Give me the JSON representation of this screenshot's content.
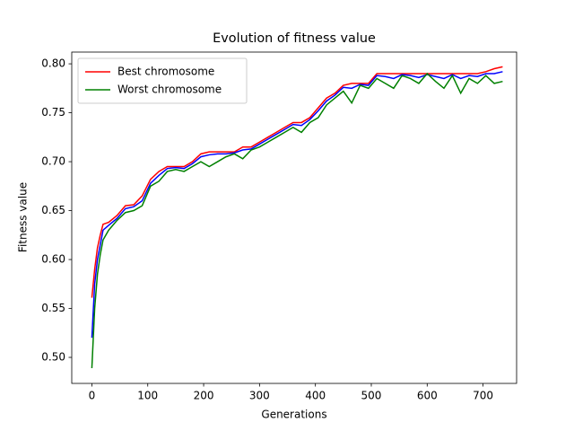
{
  "chart_data": {
    "type": "line",
    "title": "Evolution of fitness value",
    "xlabel": "Generations",
    "ylabel": "Fitness value",
    "x": [
      0,
      5,
      10,
      15,
      20,
      30,
      45,
      60,
      75,
      90,
      105,
      120,
      135,
      150,
      165,
      180,
      195,
      210,
      225,
      240,
      255,
      270,
      285,
      300,
      315,
      330,
      345,
      360,
      375,
      390,
      405,
      420,
      435,
      450,
      465,
      480,
      495,
      510,
      525,
      540,
      555,
      570,
      585,
      600,
      615,
      630,
      645,
      660,
      675,
      690,
      705,
      720,
      735
    ],
    "series": [
      {
        "name": "Best chromosome",
        "color": "#ff0000",
        "values": [
          0.561,
          0.59,
          0.612,
          0.625,
          0.636,
          0.638,
          0.645,
          0.655,
          0.656,
          0.665,
          0.682,
          0.69,
          0.695,
          0.695,
          0.695,
          0.7,
          0.708,
          0.71,
          0.71,
          0.71,
          0.71,
          0.715,
          0.715,
          0.72,
          0.725,
          0.73,
          0.735,
          0.74,
          0.74,
          0.745,
          0.755,
          0.765,
          0.77,
          0.778,
          0.78,
          0.78,
          0.78,
          0.79,
          0.79,
          0.79,
          0.79,
          0.79,
          0.79,
          0.79,
          0.79,
          0.79,
          0.79,
          0.79,
          0.79,
          0.79,
          0.792,
          0.795,
          0.797
        ]
      },
      {
        "color": "#0000ff",
        "values": [
          0.52,
          0.575,
          0.6,
          0.615,
          0.63,
          0.635,
          0.642,
          0.652,
          0.654,
          0.66,
          0.678,
          0.686,
          0.693,
          0.694,
          0.693,
          0.698,
          0.705,
          0.707,
          0.708,
          0.708,
          0.709,
          0.712,
          0.713,
          0.718,
          0.723,
          0.728,
          0.733,
          0.738,
          0.737,
          0.743,
          0.752,
          0.762,
          0.768,
          0.776,
          0.775,
          0.779,
          0.778,
          0.788,
          0.787,
          0.785,
          0.789,
          0.788,
          0.786,
          0.789,
          0.787,
          0.785,
          0.789,
          0.785,
          0.788,
          0.787,
          0.79,
          0.79,
          0.792
        ]
      },
      {
        "name": "Worst chromosome",
        "color": "#008000",
        "values": [
          0.489,
          0.55,
          0.585,
          0.605,
          0.62,
          0.63,
          0.64,
          0.648,
          0.65,
          0.655,
          0.675,
          0.68,
          0.69,
          0.692,
          0.69,
          0.695,
          0.7,
          0.695,
          0.7,
          0.705,
          0.708,
          0.703,
          0.712,
          0.715,
          0.72,
          0.725,
          0.73,
          0.735,
          0.73,
          0.74,
          0.745,
          0.758,
          0.765,
          0.772,
          0.76,
          0.778,
          0.775,
          0.785,
          0.78,
          0.775,
          0.788,
          0.785,
          0.78,
          0.79,
          0.782,
          0.775,
          0.788,
          0.77,
          0.785,
          0.78,
          0.788,
          0.78,
          0.782
        ]
      }
    ],
    "xlim": [
      -36,
      760
    ],
    "ylim": [
      0.4734,
      0.812
    ],
    "xticks": [
      0,
      100,
      200,
      300,
      400,
      500,
      600,
      700
    ],
    "yticks": [
      {
        "value": 0.5,
        "label": "0.50"
      },
      {
        "value": 0.55,
        "label": "0.55"
      },
      {
        "value": 0.6,
        "label": "0.60"
      },
      {
        "value": 0.65,
        "label": "0.65"
      },
      {
        "value": 0.7,
        "label": "0.70"
      },
      {
        "value": 0.75,
        "label": "0.75"
      },
      {
        "value": 0.8,
        "label": "0.80"
      }
    ],
    "grid": false,
    "legend": "upper-left"
  }
}
